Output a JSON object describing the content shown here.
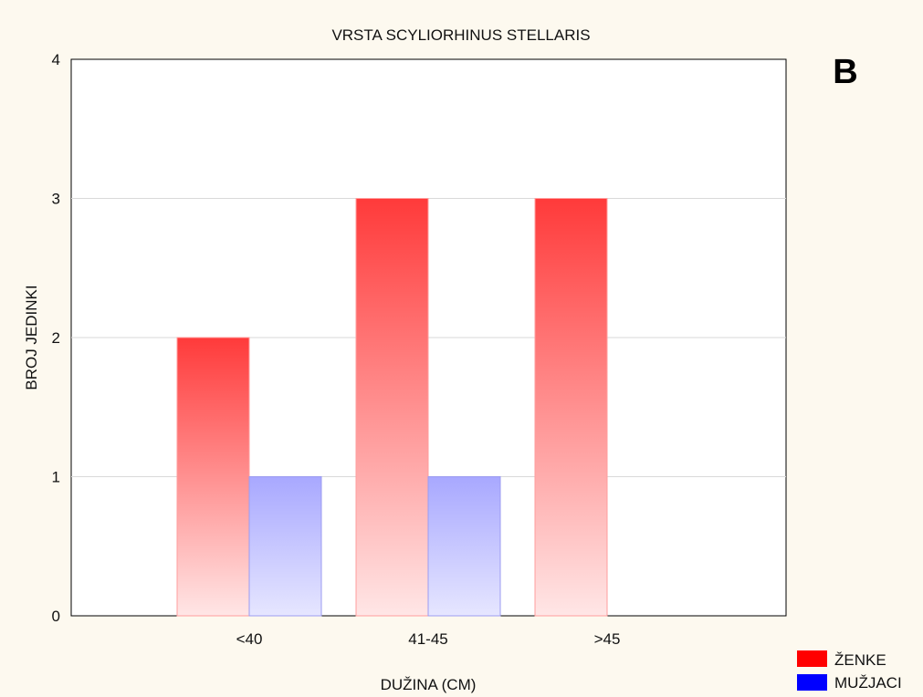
{
  "chart_data": {
    "type": "bar",
    "title": "VRSTA SCYLIORHINUS STELLARIS",
    "panel_letter": "B",
    "xlabel": "DUŽINA (CM)",
    "ylabel": "BROJ JEDINKI",
    "categories": [
      "<40",
      "41-45",
      ">45"
    ],
    "series": [
      {
        "name": "ŽENKE",
        "values": [
          2,
          3,
          3
        ],
        "color": "#ff0000"
      },
      {
        "name": "MUŽJACI",
        "values": [
          1,
          1,
          0
        ],
        "color": "#0000ff"
      }
    ],
    "ylim": [
      0,
      4
    ],
    "yticks": [
      0,
      1,
      2,
      3,
      4
    ],
    "grid": true,
    "legend_position": "bottom-right"
  }
}
